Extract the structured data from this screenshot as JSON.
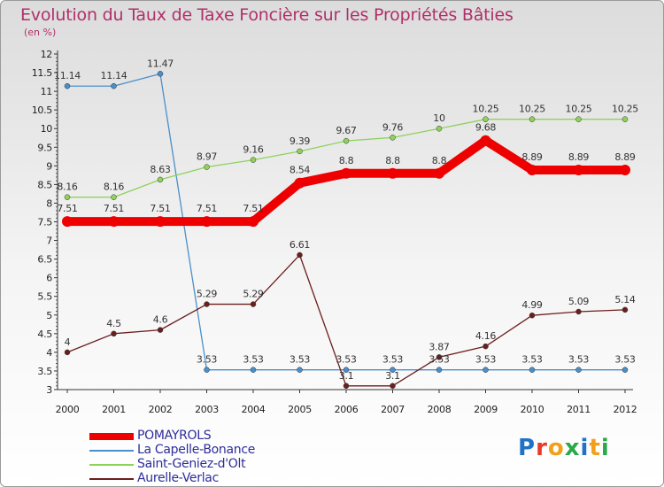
{
  "header": {
    "title": "Evolution du Taux de Taxe Foncière sur les Propriétés Bâties",
    "unit": "(en %)"
  },
  "logo": {
    "text": "Proxiti",
    "letters": [
      "P",
      "r",
      "o",
      "x",
      "i",
      "t",
      "i"
    ],
    "colors": [
      "#1e73c8",
      "#e83a2a",
      "#f0a01a",
      "#2aa84a",
      "#1e73c8",
      "#f0a01a",
      "#2aa84a"
    ]
  },
  "chart_data": {
    "type": "line",
    "x": [
      "2000",
      "2001",
      "2002",
      "2003",
      "2004",
      "2005",
      "2006",
      "2007",
      "2008",
      "2009",
      "2010",
      "2011",
      "2012"
    ],
    "ylim": [
      3,
      12
    ],
    "yticks": [
      "3",
      "3.5",
      "4",
      "4.5",
      "5",
      "5.5",
      "6",
      "6.5",
      "7",
      "7.5",
      "8",
      "8.5",
      "9",
      "9.5",
      "10",
      "10.5",
      "11",
      "11.5",
      "12"
    ],
    "grid": false,
    "legend_position": "bottom-left",
    "series": [
      {
        "name": "POMAYROLS",
        "color": "#ee0000",
        "values": [
          7.51,
          7.51,
          7.51,
          7.51,
          7.51,
          8.54,
          8.8,
          8.8,
          8.8,
          9.68,
          8.89,
          8.89,
          8.89
        ],
        "labels": [
          "7.51",
          "7.51",
          "7.51",
          "7.51",
          "7.51",
          "8.54",
          "8.8",
          "8.8",
          "8.8",
          "9.68",
          "8.89",
          "8.89",
          "8.89"
        ]
      },
      {
        "name": "La Capelle-Bonance",
        "color": "#4a8fc8",
        "values": [
          11.14,
          11.14,
          11.47,
          3.53,
          3.53,
          3.53,
          3.53,
          3.53,
          3.53,
          3.53,
          3.53,
          3.53,
          3.53
        ],
        "labels": [
          "11.14",
          "11.14",
          "11.47",
          "3.53",
          "3.53",
          "3.53",
          "3.53",
          "3.53",
          "3.53",
          "3.53",
          "3.53",
          "3.53",
          "3.53"
        ]
      },
      {
        "name": "Saint-Geniez-d'Olt",
        "color": "#8ed25a",
        "values": [
          8.16,
          8.16,
          8.63,
          8.97,
          9.16,
          9.39,
          9.67,
          9.76,
          10,
          10.25,
          10.25,
          10.25,
          10.25
        ],
        "labels": [
          "8.16",
          "8.16",
          "8.63",
          "8.97",
          "9.16",
          "9.39",
          "9.67",
          "9.76",
          "10",
          "10.25",
          "10.25",
          "10.25",
          "10.25"
        ]
      },
      {
        "name": "Aurelle-Verlac",
        "color": "#6b1e1e",
        "values": [
          4,
          4.5,
          4.6,
          5.29,
          5.29,
          6.61,
          3.1,
          3.1,
          3.87,
          4.16,
          4.99,
          5.09,
          5.14
        ],
        "labels": [
          "4",
          "4.5",
          "4.6",
          "5.29",
          "5.29",
          "6.61",
          "3.1",
          "3.1",
          "3.87",
          "4.16",
          "4.99",
          "5.09",
          "5.14"
        ]
      }
    ]
  }
}
